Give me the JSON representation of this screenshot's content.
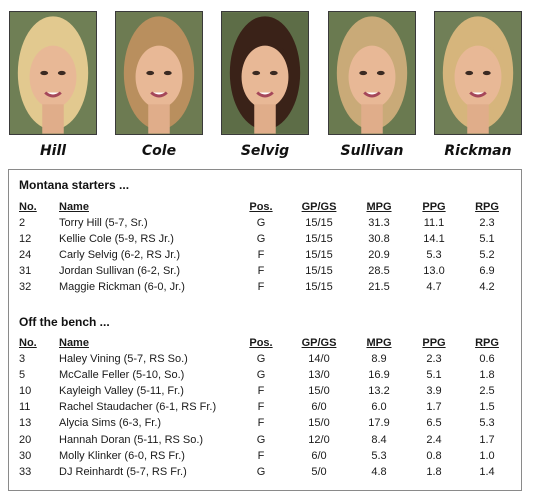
{
  "players_header": [
    {
      "name": "Hill",
      "hair": "#e2c98f",
      "bg": "#6f7f55"
    },
    {
      "name": "Cole",
      "hair": "#b98f5e",
      "bg": "#6d7b52"
    },
    {
      "name": "Selvig",
      "hair": "#3a2218",
      "bg": "#5d6d47"
    },
    {
      "name": "Sullivan",
      "hair": "#c9aa78",
      "bg": "#6a7a50"
    },
    {
      "name": "Rickman",
      "hair": "#d6b57c",
      "bg": "#707f57"
    }
  ],
  "starters": {
    "title": "Montana starters ...",
    "headers": {
      "no": "No.",
      "name": "Name",
      "pos": "Pos.",
      "gp": "GP/GS",
      "mpg": "MPG",
      "ppg": "PPG",
      "rpg": "RPG"
    },
    "rows": [
      {
        "no": "2",
        "name": "Torry Hill (5-7, Sr.)",
        "pos": "G",
        "gp": "15/15",
        "mpg": "31.3",
        "ppg": "11.1",
        "rpg": "2.3"
      },
      {
        "no": "12",
        "name": "Kellie Cole (5-9, RS Jr.)",
        "pos": "G",
        "gp": "15/15",
        "mpg": "30.8",
        "ppg": "14.1",
        "rpg": "5.1"
      },
      {
        "no": "24",
        "name": "Carly Selvig (6-2, RS Jr.)",
        "pos": "F",
        "gp": "15/15",
        "mpg": "20.9",
        "ppg": "5.3",
        "rpg": "5.2"
      },
      {
        "no": "31",
        "name": "Jordan Sullivan (6-2, Sr.)",
        "pos": "F",
        "gp": "15/15",
        "mpg": "28.5",
        "ppg": "13.0",
        "rpg": "6.9"
      },
      {
        "no": "32",
        "name": "Maggie Rickman (6-0, Jr.)",
        "pos": "F",
        "gp": "15/15",
        "mpg": "21.5",
        "ppg": "4.7",
        "rpg": "4.2"
      }
    ]
  },
  "bench": {
    "title": "Off the bench ...",
    "headers": {
      "no": "No.",
      "name": "Name",
      "pos": "Pos.",
      "gp": "GP/GS",
      "mpg": "MPG",
      "ppg": "PPG",
      "rpg": "RPG"
    },
    "rows": [
      {
        "no": "3",
        "name": "Haley Vining (5-7, RS So.)",
        "pos": "G",
        "gp": "14/0",
        "mpg": "8.9",
        "ppg": "2.3",
        "rpg": "0.6"
      },
      {
        "no": "5",
        "name": "McCalle Feller (5-10, So.)",
        "pos": "G",
        "gp": "13/0",
        "mpg": "16.9",
        "ppg": "5.1",
        "rpg": "1.8"
      },
      {
        "no": "10",
        "name": "Kayleigh Valley (5-11, Fr.)",
        "pos": "F",
        "gp": "15/0",
        "mpg": "13.2",
        "ppg": "3.9",
        "rpg": "2.5"
      },
      {
        "no": "11",
        "name": "Rachel Staudacher (6-1, RS Fr.)",
        "pos": "F",
        "gp": "6/0",
        "mpg": "6.0",
        "ppg": "1.7",
        "rpg": "1.5"
      },
      {
        "no": "13",
        "name": "Alycia Sims (6-3, Fr.)",
        "pos": "F",
        "gp": "15/0",
        "mpg": "17.9",
        "ppg": "6.5",
        "rpg": "5.3"
      },
      {
        "no": "20",
        "name": "Hannah Doran (5-11, RS So.)",
        "pos": "G",
        "gp": "12/0",
        "mpg": "8.4",
        "ppg": "2.4",
        "rpg": "1.7"
      },
      {
        "no": "30",
        "name": "Molly Klinker (6-0, RS Fr.)",
        "pos": "F",
        "gp": "6/0",
        "mpg": "5.3",
        "ppg": "0.8",
        "rpg": "1.0"
      },
      {
        "no": "33",
        "name": "DJ Reinhardt (5-7, RS Fr.)",
        "pos": "G",
        "gp": "5/0",
        "mpg": "4.8",
        "ppg": "1.8",
        "rpg": "1.4"
      }
    ]
  }
}
